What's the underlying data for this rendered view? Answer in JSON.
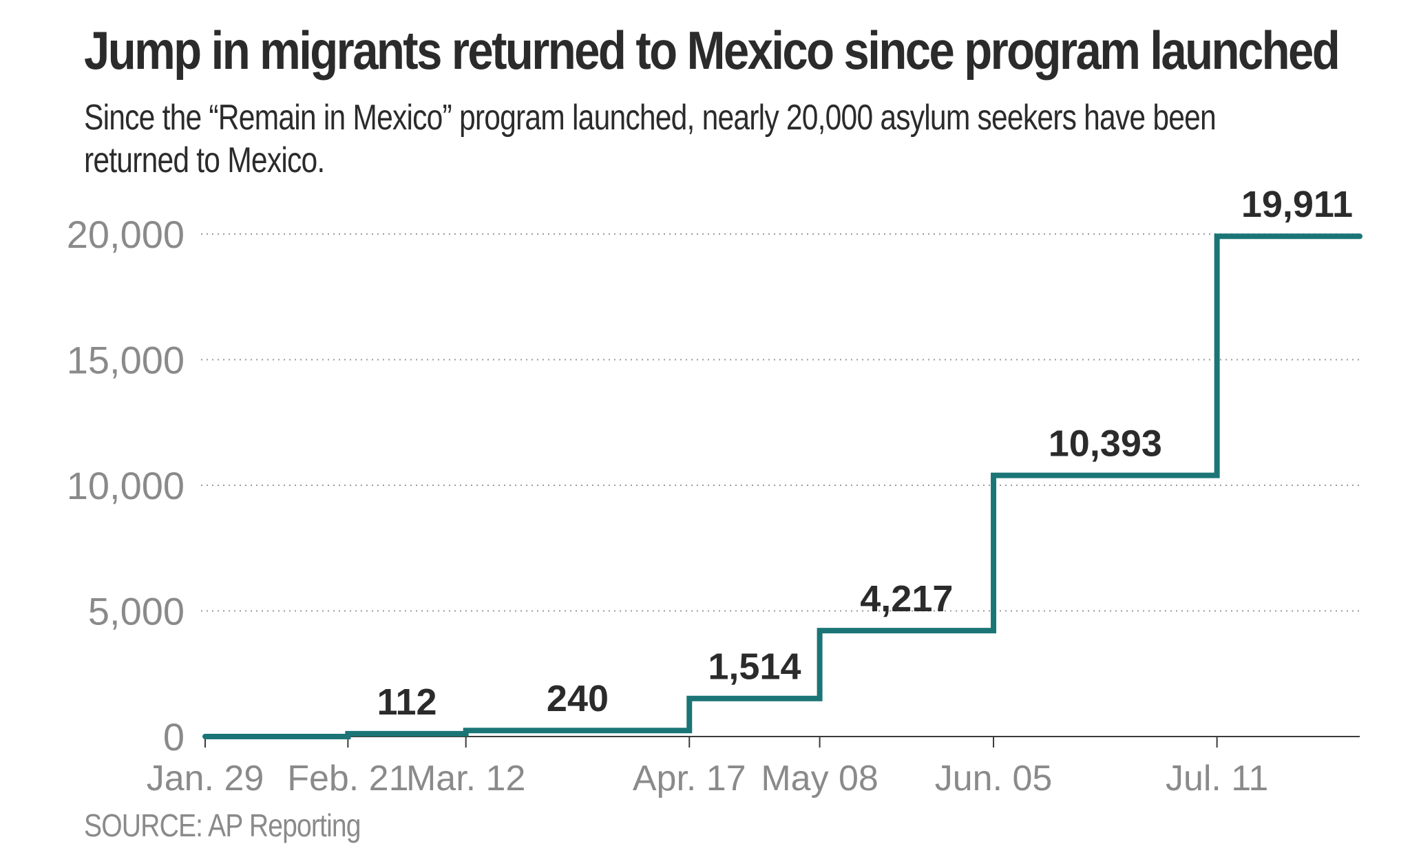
{
  "title": "Jump in migrants returned to Mexico since program launched",
  "subtitle": "Since the “Remain in Mexico” program launched, nearly 20,000 asylum seekers have been returned to Mexico.",
  "source": "SOURCE: AP Reporting",
  "colors": {
    "line": "#1b7576",
    "text": "#2b2b2b",
    "muted": "#8a8a8a",
    "grid": "#9a9a9a"
  },
  "chart_data": {
    "type": "line",
    "step": "post",
    "title": "Jump in migrants returned to Mexico since program launched",
    "xlabel": "",
    "ylabel": "",
    "ylim": [
      0,
      20000
    ],
    "grid": true,
    "yticks": [
      0,
      5000,
      10000,
      15000,
      20000
    ],
    "ytick_labels": [
      "0",
      "5,000",
      "10,000",
      "15,000",
      "20,000"
    ],
    "x_start": "Jan. 29",
    "x_end_day": 215,
    "points": [
      {
        "day": 29,
        "label": "Jan. 29",
        "value": 0,
        "data_label": ""
      },
      {
        "day": 52,
        "label": "Feb. 21",
        "value": 112,
        "data_label": "112"
      },
      {
        "day": 71,
        "label": "Mar. 12",
        "value": 240,
        "data_label": "240"
      },
      {
        "day": 107,
        "label": "Apr. 17",
        "value": 1514,
        "data_label": "1,514"
      },
      {
        "day": 128,
        "label": "May 08",
        "value": 4217,
        "data_label": "4,217"
      },
      {
        "day": 156,
        "label": "Jun. 05",
        "value": 10393,
        "data_label": "10,393"
      },
      {
        "day": 192,
        "label": "Jul. 11",
        "value": 19911,
        "data_label": "19,911"
      }
    ]
  }
}
